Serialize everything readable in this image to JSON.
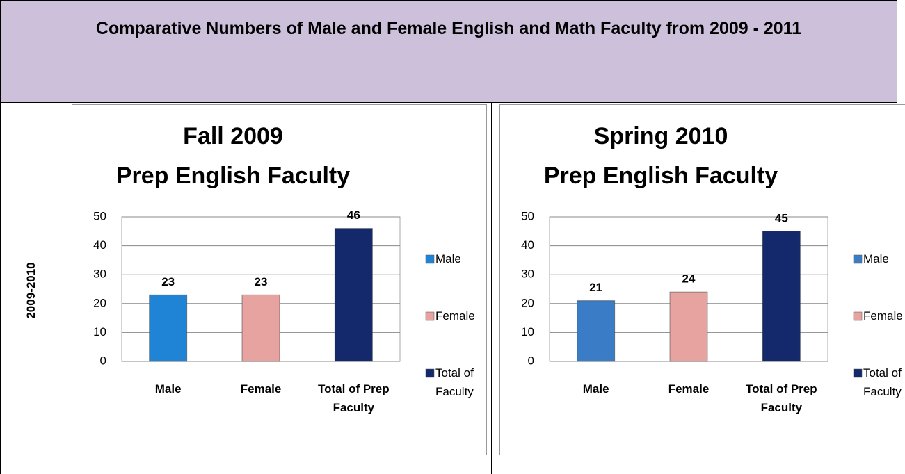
{
  "header": {
    "title": "Comparative Numbers of Male and Female English and Math Faculty from 2009 - 2011"
  },
  "row_label": "2009-2010",
  "chart_data": [
    {
      "type": "bar",
      "title": "Fall 2009",
      "subtitle": "Prep English Faculty",
      "categories": [
        "Male",
        "Female",
        "Total of Prep Faculty"
      ],
      "values": [
        23,
        23,
        46
      ],
      "colors": [
        "#1f83d6",
        "#e6a3a0",
        "#14296b"
      ],
      "legend": [
        "Male",
        "Female",
        "Total of Faculty"
      ],
      "ylim": [
        0,
        50
      ],
      "yticks": [
        0,
        10,
        20,
        30,
        40,
        50
      ],
      "grid": true
    },
    {
      "type": "bar",
      "title": "Spring 2010",
      "subtitle": "Prep English Faculty",
      "categories": [
        "Male",
        "Female",
        "Total of Prep Faculty"
      ],
      "values": [
        21,
        24,
        45
      ],
      "colors": [
        "#3b7cc7",
        "#e6a3a0",
        "#14296b"
      ],
      "legend": [
        "Male",
        "Female",
        "Total of Faculty"
      ],
      "ylim": [
        0,
        50
      ],
      "yticks": [
        0,
        10,
        20,
        30,
        40,
        50
      ],
      "grid": true
    }
  ]
}
